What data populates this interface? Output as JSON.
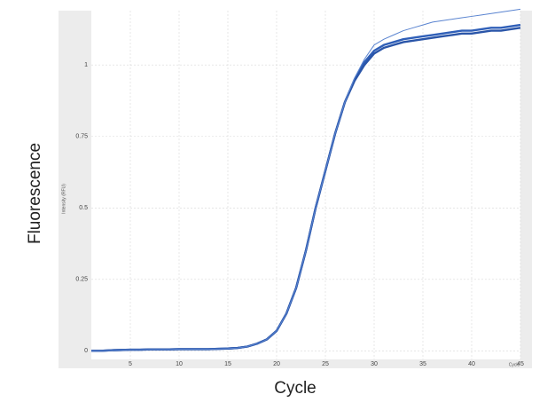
{
  "chart_data": {
    "type": "line",
    "xlabel": "Cycle",
    "ylabel": "Fluorescence",
    "inner_ylabel": "Intensity (RFU)",
    "inner_xlabel": "Cycle",
    "x": [
      1,
      2,
      3,
      4,
      5,
      6,
      7,
      8,
      9,
      10,
      11,
      12,
      13,
      14,
      15,
      16,
      17,
      18,
      19,
      20,
      21,
      22,
      23,
      24,
      25,
      26,
      27,
      28,
      29,
      30,
      31,
      32,
      33,
      34,
      35,
      36,
      37,
      38,
      39,
      40,
      41,
      42,
      43,
      44,
      45
    ],
    "series": [
      {
        "color": "#2f5fb8",
        "values": [
          0.0,
          0.0,
          0.002,
          0.003,
          0.004,
          0.004,
          0.005,
          0.005,
          0.005,
          0.006,
          0.006,
          0.006,
          0.006,
          0.007,
          0.008,
          0.01,
          0.015,
          0.025,
          0.04,
          0.07,
          0.13,
          0.22,
          0.35,
          0.5,
          0.63,
          0.76,
          0.87,
          0.95,
          1.01,
          1.05,
          1.07,
          1.08,
          1.09,
          1.095,
          1.1,
          1.105,
          1.11,
          1.115,
          1.12,
          1.12,
          1.125,
          1.13,
          1.13,
          1.135,
          1.14
        ]
      },
      {
        "color": "#2a55a8",
        "values": [
          0.0,
          0.0,
          0.002,
          0.003,
          0.004,
          0.004,
          0.005,
          0.005,
          0.005,
          0.006,
          0.006,
          0.006,
          0.006,
          0.007,
          0.008,
          0.01,
          0.015,
          0.025,
          0.04,
          0.07,
          0.13,
          0.22,
          0.35,
          0.5,
          0.63,
          0.76,
          0.87,
          0.945,
          1.0,
          1.04,
          1.06,
          1.07,
          1.08,
          1.085,
          1.09,
          1.095,
          1.1,
          1.105,
          1.11,
          1.11,
          1.115,
          1.12,
          1.12,
          1.125,
          1.13
        ]
      },
      {
        "color": "#5a84d0",
        "values": [
          0.0,
          0.0,
          0.002,
          0.003,
          0.004,
          0.004,
          0.005,
          0.005,
          0.005,
          0.006,
          0.006,
          0.006,
          0.006,
          0.007,
          0.008,
          0.01,
          0.015,
          0.025,
          0.04,
          0.07,
          0.13,
          0.22,
          0.35,
          0.5,
          0.63,
          0.76,
          0.87,
          0.955,
          1.02,
          1.07,
          1.09,
          1.105,
          1.12,
          1.13,
          1.14,
          1.15,
          1.155,
          1.16,
          1.165,
          1.17,
          1.175,
          1.18,
          1.185,
          1.19,
          1.195
        ]
      }
    ],
    "xlim": [
      1,
      45
    ],
    "xticks": [
      5,
      10,
      15,
      20,
      25,
      30,
      35,
      40,
      45
    ],
    "ylim": [
      -0.03,
      1.19
    ],
    "yticks": [
      0,
      0.25,
      0.5,
      0.75,
      1
    ],
    "grid": true
  }
}
